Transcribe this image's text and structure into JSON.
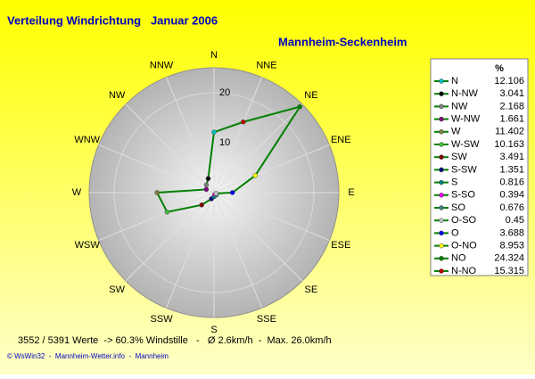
{
  "chart_data": {
    "type": "radar",
    "title": "Verteilung Windrichtung   Januar 2006",
    "subtitle": "Mannheim-Seckenheim",
    "legend_title": "%",
    "categories": [
      "N",
      "N-NW",
      "NW",
      "W-NW",
      "W",
      "W-SW",
      "SW",
      "S-SW",
      "S",
      "S-SO",
      "SO",
      "O-SO",
      "O",
      "O-NO",
      "NO",
      "N-NO"
    ],
    "axis_labels": [
      "N",
      "NNW",
      "NW",
      "WNW",
      "W",
      "WSW",
      "SW",
      "SSW",
      "S",
      "SSE",
      "SE",
      "ESE",
      "E",
      "ENE",
      "NE",
      "NNE"
    ],
    "values": [
      12.106,
      3.041,
      2.168,
      1.661,
      11.402,
      10.163,
      3.491,
      1.351,
      0.816,
      0.394,
      0.676,
      0.45,
      3.688,
      8.953,
      24.324,
      15.315
    ],
    "point_colors": [
      "#00c0c0",
      "#000000",
      "#808080",
      "#800080",
      "#808040",
      "#40c040",
      "#800000",
      "#000080",
      "#008080",
      "#ff00ff",
      "#408080",
      "#c0c0c0",
      "#0000ff",
      "#ffff00",
      "#008000",
      "#c00000"
    ],
    "line_color": "#008000",
    "rlim": [
      0,
      25
    ],
    "rticks": [
      10,
      20
    ],
    "footer": "3552 / 5391 Werte  -> 60.3% Windstille   -   Ø 2.6km/h  -  Max. 26.0km/h",
    "credit": "© WsWin32  -  Mannheim-Wetter.info  -  Mannheim"
  }
}
